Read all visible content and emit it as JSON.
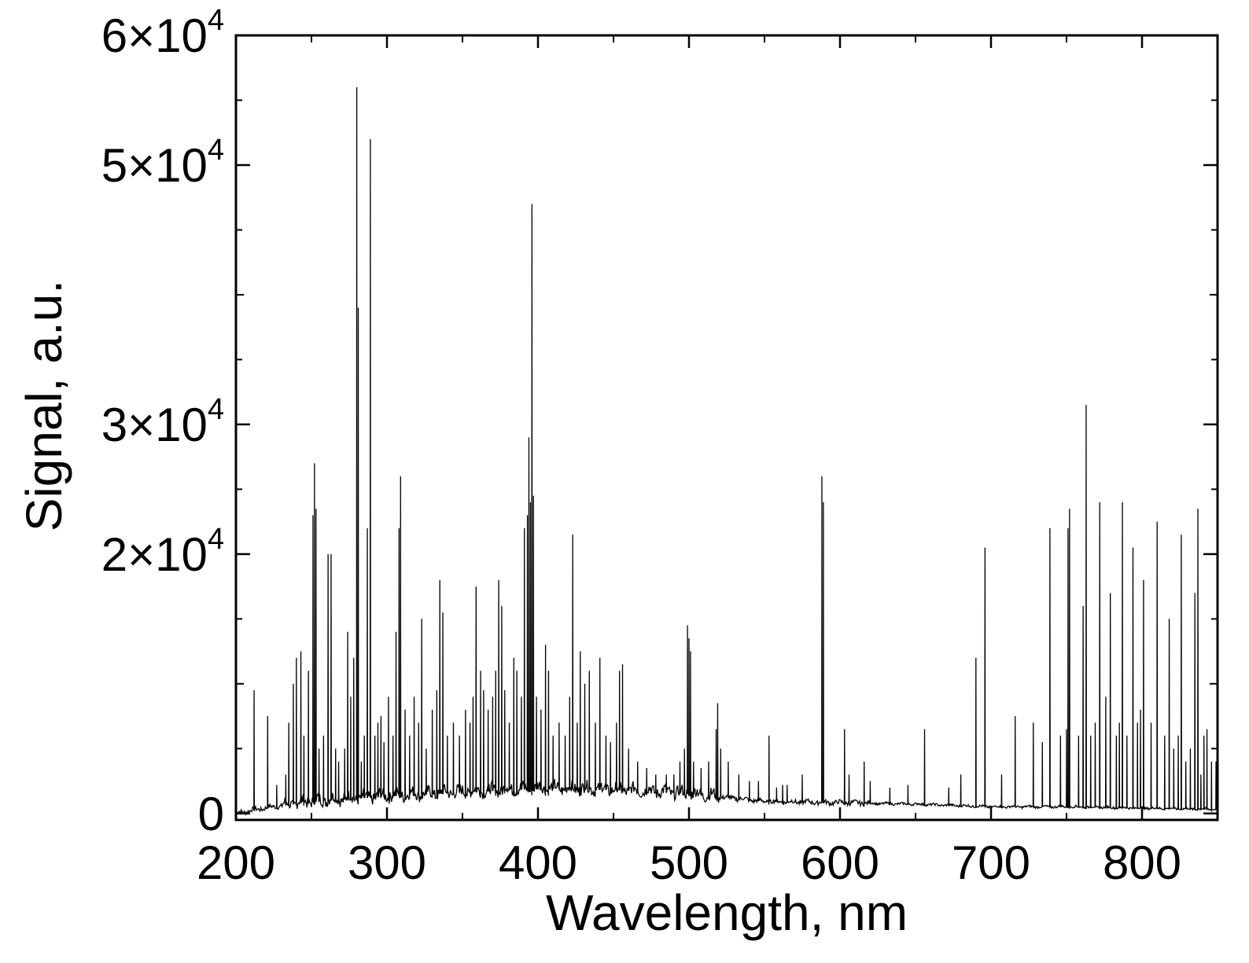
{
  "chart_data": {
    "type": "line",
    "title": "",
    "xlabel": "Wavelength, nm",
    "ylabel": "Signal, a.u.",
    "xlim": [
      200,
      850
    ],
    "ylim": [
      -500,
      60000
    ],
    "x_ticks": [
      200,
      300,
      400,
      500,
      600,
      700,
      800
    ],
    "x_tick_labels": [
      "200",
      "300",
      "400",
      "500",
      "600",
      "700",
      "800"
    ],
    "y_ticks": [
      0,
      20000,
      30000,
      50000,
      60000
    ],
    "y_tick_labels": [
      {
        "mantissa": "0",
        "exponent": ""
      },
      {
        "mantissa": "2×10",
        "exponent": "4"
      },
      {
        "mantissa": "3×10",
        "exponent": "4"
      },
      {
        "mantissa": "5×10",
        "exponent": "4"
      },
      {
        "mantissa": "6×10",
        "exponent": "4"
      }
    ],
    "y_minor_ticks": [
      10000,
      40000
    ],
    "grid": false,
    "line_color": "#000000",
    "baseline": [
      [
        200,
        0
      ],
      [
        220,
        400
      ],
      [
        250,
        900
      ],
      [
        300,
        1300
      ],
      [
        350,
        1600
      ],
      [
        400,
        1900
      ],
      [
        450,
        1800
      ],
      [
        500,
        1500
      ],
      [
        550,
        900
      ],
      [
        600,
        800
      ],
      [
        650,
        700
      ],
      [
        700,
        500
      ],
      [
        750,
        500
      ],
      [
        800,
        400
      ],
      [
        850,
        300
      ]
    ],
    "peaks": [
      [
        212,
        9500
      ],
      [
        221,
        7500
      ],
      [
        227,
        2200
      ],
      [
        233,
        3000
      ],
      [
        235,
        7000
      ],
      [
        238,
        10000
      ],
      [
        240,
        12000
      ],
      [
        243,
        12500
      ],
      [
        245,
        6000
      ],
      [
        248,
        11000
      ],
      [
        251,
        23000
      ],
      [
        252,
        27000
      ],
      [
        253,
        23500
      ],
      [
        255,
        5000
      ],
      [
        258,
        6000
      ],
      [
        261,
        20000
      ],
      [
        263,
        20000
      ],
      [
        266,
        5000
      ],
      [
        268,
        4000
      ],
      [
        272,
        5000
      ],
      [
        274,
        14000
      ],
      [
        276,
        9000
      ],
      [
        278,
        12000
      ],
      [
        280,
        56000
      ],
      [
        281,
        39000
      ],
      [
        283,
        4000
      ],
      [
        285,
        6000
      ],
      [
        287,
        22000
      ],
      [
        289,
        52000
      ],
      [
        292,
        6000
      ],
      [
        294,
        7000
      ],
      [
        296,
        7500
      ],
      [
        298,
        5500
      ],
      [
        301,
        9000
      ],
      [
        304,
        6000
      ],
      [
        306,
        14000
      ],
      [
        308,
        22000
      ],
      [
        309,
        26000
      ],
      [
        312,
        8000
      ],
      [
        315,
        6000
      ],
      [
        318,
        9000
      ],
      [
        321,
        7000
      ],
      [
        323,
        15000
      ],
      [
        326,
        5000
      ],
      [
        330,
        8000
      ],
      [
        333,
        9500
      ],
      [
        335,
        18000
      ],
      [
        337,
        15500
      ],
      [
        340,
        6000
      ],
      [
        344,
        7000
      ],
      [
        348,
        6000
      ],
      [
        352,
        8000
      ],
      [
        355,
        7000
      ],
      [
        357,
        9000
      ],
      [
        359,
        17500
      ],
      [
        362,
        11000
      ],
      [
        364,
        9500
      ],
      [
        367,
        8000
      ],
      [
        370,
        9000
      ],
      [
        372,
        11000
      ],
      [
        374,
        18000
      ],
      [
        376,
        16000
      ],
      [
        378,
        9500
      ],
      [
        381,
        7000
      ],
      [
        384,
        12000
      ],
      [
        386,
        11000
      ],
      [
        389,
        9000
      ],
      [
        391,
        22000
      ],
      [
        393,
        23000
      ],
      [
        394,
        29000
      ],
      [
        395,
        24000
      ],
      [
        396,
        47000
      ],
      [
        397,
        24500
      ],
      [
        399,
        9000
      ],
      [
        402,
        8000
      ],
      [
        405,
        13000
      ],
      [
        407,
        11000
      ],
      [
        410,
        6000
      ],
      [
        414,
        7000
      ],
      [
        418,
        6000
      ],
      [
        421,
        9000
      ],
      [
        423,
        21500
      ],
      [
        426,
        7000
      ],
      [
        428,
        12500
      ],
      [
        431,
        10000
      ],
      [
        434,
        11000
      ],
      [
        438,
        7000
      ],
      [
        441,
        12000
      ],
      [
        445,
        6000
      ],
      [
        448,
        5500
      ],
      [
        452,
        7000
      ],
      [
        454,
        11000
      ],
      [
        456,
        11500
      ],
      [
        460,
        5000
      ],
      [
        466,
        4000
      ],
      [
        472,
        3500
      ],
      [
        478,
        3000
      ],
      [
        485,
        3000
      ],
      [
        490,
        3000
      ],
      [
        494,
        4000
      ],
      [
        497,
        5000
      ],
      [
        499,
        14500
      ],
      [
        500,
        13500
      ],
      [
        501,
        12500
      ],
      [
        503,
        4000
      ],
      [
        508,
        3500
      ],
      [
        513,
        4000
      ],
      [
        518,
        6500
      ],
      [
        519,
        8500
      ],
      [
        521,
        5000
      ],
      [
        526,
        4000
      ],
      [
        533,
        3000
      ],
      [
        540,
        2500
      ],
      [
        546,
        2500
      ],
      [
        553,
        6000
      ],
      [
        558,
        2000
      ],
      [
        562,
        2200
      ],
      [
        565,
        2200
      ],
      [
        575,
        3000
      ],
      [
        588,
        26000
      ],
      [
        589,
        24000
      ],
      [
        603,
        6500
      ],
      [
        606,
        3000
      ],
      [
        616,
        4000
      ],
      [
        620,
        2500
      ],
      [
        633,
        2000
      ],
      [
        645,
        2200
      ],
      [
        656,
        6500
      ],
      [
        672,
        2000
      ],
      [
        680,
        3000
      ],
      [
        690,
        12000
      ],
      [
        696,
        20500
      ],
      [
        707,
        3000
      ],
      [
        716,
        7500
      ],
      [
        728,
        7000
      ],
      [
        734,
        5500
      ],
      [
        739,
        22000
      ],
      [
        746,
        6000
      ],
      [
        750,
        6500
      ],
      [
        751,
        22000
      ],
      [
        752,
        23500
      ],
      [
        758,
        6000
      ],
      [
        761,
        16000
      ],
      [
        763,
        31500
      ],
      [
        766,
        6000
      ],
      [
        769,
        7000
      ],
      [
        772,
        24000
      ],
      [
        776,
        9000
      ],
      [
        779,
        17000
      ],
      [
        783,
        6000
      ],
      [
        785,
        7000
      ],
      [
        787,
        24000
      ],
      [
        790,
        6000
      ],
      [
        794,
        20500
      ],
      [
        797,
        7000
      ],
      [
        799,
        8000
      ],
      [
        801,
        18000
      ],
      [
        806,
        7000
      ],
      [
        810,
        22500
      ],
      [
        815,
        6000
      ],
      [
        818,
        15000
      ],
      [
        821,
        5000
      ],
      [
        824,
        6000
      ],
      [
        826,
        21500
      ],
      [
        829,
        4000
      ],
      [
        832,
        5000
      ],
      [
        835,
        17000
      ],
      [
        837,
        23500
      ],
      [
        839,
        3000
      ],
      [
        841,
        6000
      ],
      [
        843,
        6500
      ],
      [
        846,
        4000
      ],
      [
        849,
        4000
      ]
    ]
  }
}
